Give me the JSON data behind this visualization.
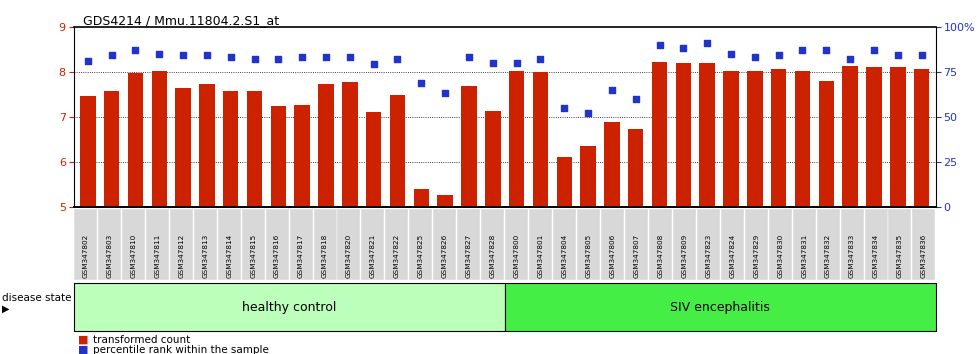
{
  "title": "GDS4214 / Mmu.11804.2.S1_at",
  "samples": [
    "GSM347802",
    "GSM347803",
    "GSM347810",
    "GSM347811",
    "GSM347812",
    "GSM347813",
    "GSM347814",
    "GSM347815",
    "GSM347816",
    "GSM347817",
    "GSM347818",
    "GSM347820",
    "GSM347821",
    "GSM347822",
    "GSM347825",
    "GSM347826",
    "GSM347827",
    "GSM347828",
    "GSM347800",
    "GSM347801",
    "GSM347804",
    "GSM347805",
    "GSM347806",
    "GSM347807",
    "GSM347808",
    "GSM347809",
    "GSM347823",
    "GSM347824",
    "GSM347829",
    "GSM347830",
    "GSM347831",
    "GSM347832",
    "GSM347833",
    "GSM347834",
    "GSM347835",
    "GSM347836"
  ],
  "bar_values": [
    7.47,
    7.58,
    7.96,
    8.02,
    7.63,
    7.72,
    7.58,
    7.57,
    7.24,
    7.27,
    7.72,
    7.78,
    7.1,
    7.48,
    5.4,
    5.27,
    7.68,
    7.12,
    8.02,
    8.0,
    6.1,
    6.35,
    6.88,
    6.72,
    8.22,
    8.2,
    8.2,
    8.02,
    8.02,
    8.05,
    8.02,
    7.8,
    8.12,
    8.1,
    8.1,
    8.05
  ],
  "dot_values": [
    81,
    84,
    87,
    85,
    84,
    84,
    83,
    82,
    82,
    83,
    83,
    83,
    79,
    82,
    69,
    63,
    83,
    80,
    80,
    82,
    55,
    52,
    65,
    60,
    90,
    88,
    91,
    85,
    83,
    84,
    87,
    87,
    82,
    87,
    84,
    84
  ],
  "healthy_count": 18,
  "siv_count": 18,
  "bar_color": "#cc2200",
  "dot_color": "#2233cc",
  "healthy_color": "#bbffbb",
  "siv_color": "#44ee44",
  "healthy_label": "healthy control",
  "siv_label": "SIV encephalitis",
  "disease_state_label": "disease state",
  "ylim_left": [
    5.0,
    9.0
  ],
  "ylim_right": [
    0,
    100
  ],
  "yticks_left": [
    5,
    6,
    7,
    8,
    9
  ],
  "yticks_right": [
    0,
    25,
    50,
    75,
    100
  ],
  "tick_label_bg": "#d8d8d8"
}
